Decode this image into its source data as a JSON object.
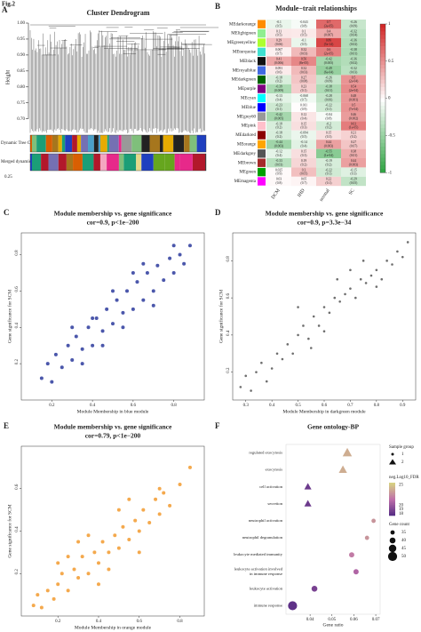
{
  "figure_label": "Fig.2",
  "chart_data": [
    {
      "panel": "A",
      "type": "dendrogram",
      "title": "Cluster Dendrogram",
      "ylabel": "Height",
      "ylim": [
        0.66,
        1.0
      ],
      "yticks": [
        {
          "value": 0.7,
          "label": "0.70"
        },
        {
          "value": 0.75,
          "label": "0.75"
        },
        {
          "value": 0.8,
          "label": "0.80"
        },
        {
          "value": 0.85,
          "label": "0.85"
        },
        {
          "value": 0.9,
          "label": "0.90"
        },
        {
          "value": 0.95,
          "label": "0.95"
        },
        {
          "value": 1,
          "label": "1.00"
        }
      ],
      "track_labels": [
        "Dynamic Tree Cut",
        "Merged dynamic"
      ],
      "note": "0.25"
    },
    {
      "panel": "B",
      "type": "heatmap",
      "title": "Module−trait relationships",
      "rows": [
        "MEdarkorange",
        "MElightgreen",
        "MEgreenyellow",
        "MEturquoise",
        "MEblack",
        "MEroyalblue",
        "MEdarkgreen",
        "MEpurple",
        "MEcyan",
        "MEblue",
        "MEgrey60",
        "MEpink",
        "MEdarkred",
        "MEorange",
        "MEdarkgrey",
        "MEbrown",
        "MEgreen",
        "MEmagenta"
      ],
      "columns": [
        "DCM",
        "IHD",
        "normal",
        "SC"
      ],
      "values": [
        [
          -0.1,
          -0.043,
          0.7,
          -0.26
        ],
        [
          0.11,
          0.1,
          0.4,
          -0.32
        ],
        [
          0.29,
          -0.1,
          0.86,
          -0.36
        ],
        [
          0.067,
          0.32,
          0.6,
          -0.38
        ],
        [
          0.41,
          0.56,
          -0.42,
          -0.36
        ],
        [
          0.091,
          0.32,
          -0.49,
          -0.32
        ],
        [
          -0.18,
          0.27,
          -0.26,
          0.5
        ],
        [
          -0.39,
          0.23,
          -0.38,
          0.54
        ],
        [
          -0.13,
          -0.068,
          -0.28,
          0.48
        ],
        [
          -0.23,
          0.011,
          -0.22,
          0.5
        ],
        [
          -0.42,
          0.12,
          -0.04,
          0.46
        ],
        [
          -0.18,
          0.15,
          -0.2,
          0.61
        ],
        [
          -0.18,
          -0.094,
          0.15,
          0.21
        ],
        [
          -0.44,
          -0.14,
          0.44,
          0.27
        ],
        [
          -0.12,
          0.15,
          -0.55,
          0.38
        ],
        [
          -0.33,
          0.19,
          -0.19,
          0.44
        ],
        [
          0.025,
          0.3,
          -0.22,
          -0.15
        ],
        [
          0.03,
          0.05,
          0.22,
          -0.29
        ]
      ],
      "p_labels": [
        [
          "(0.5)",
          "(0.8)",
          "(3e-05)",
          "(0.09)"
        ],
        [
          "(0.5)",
          "(0.5)",
          "(0.007)",
          "(0.04)"
        ],
        [
          "(0.06)",
          "(0.5)",
          "(5e-14)",
          "(0.02)"
        ],
        [
          "(0.7)",
          "(0.03)",
          "(2e-05)",
          "(0.01)"
        ],
        [
          "(0.006)",
          "(8e-05)",
          "(0.005)",
          "(0.02)"
        ],
        [
          "(0.6)",
          "(0.03)",
          "(6e-04)",
          "(0.03)"
        ],
        [
          "(0.2)",
          "(0.08)",
          "(0.09)",
          "(2e-04)"
        ],
        [
          "(0.009)",
          "(0.1)",
          "(0.01)",
          "(2e-04)"
        ],
        [
          "(0.4)",
          "(0.7)",
          "(0.06)",
          "(0.001)"
        ],
        [
          "(0.1)",
          "(0.9)",
          "(0.1)",
          "(7e-04)"
        ],
        [
          "(0.005)",
          "(0.4)",
          "(0.8)",
          "(0.002)"
        ],
        [
          "(0.2)",
          "(0.3)",
          "(0.2)",
          "(1e-05)"
        ],
        [
          "(0.2)",
          "(0.5)",
          "(0.3)",
          "(0.2)"
        ],
        [
          "(0.003)",
          "(0.4)",
          "(0.003)",
          "(0.07)"
        ],
        [
          "(0.4)",
          "(0.3)",
          "(1e-04)",
          "(0.01)"
        ],
        [
          "(0.03)",
          "(0.2)",
          "(0.2)",
          "(0.003)"
        ],
        [
          "(0.9)",
          "(0.05)",
          "(0.1)",
          "(0.3)"
        ],
        [
          "(0.8)",
          "(0.7)",
          "(0.1)",
          "(0.05)"
        ]
      ],
      "zlim": [
        -1,
        1
      ],
      "zticks": [
        1,
        0.5,
        0,
        -0.5,
        -1
      ]
    },
    {
      "panel": "C",
      "type": "scatter",
      "title": "Module membership vs. gene significance",
      "subtitle": "cor=0.9, p<1e−200",
      "xlabel": "Module Membership in blue module",
      "ylabel": "Gene significance for SCM",
      "color": "#2b3a9c",
      "xlim": [
        0.05,
        0.95
      ],
      "ylim": [
        0,
        0.92
      ],
      "xticks": [
        0.2,
        0.4,
        0.6,
        0.8
      ],
      "yticks": [
        0.2,
        0.4,
        0.6,
        0.8
      ],
      "x": [
        0.15,
        0.18,
        0.2,
        0.22,
        0.25,
        0.28,
        0.3,
        0.32,
        0.35,
        0.38,
        0.4,
        0.42,
        0.45,
        0.47,
        0.5,
        0.52,
        0.55,
        0.57,
        0.6,
        0.62,
        0.65,
        0.67,
        0.7,
        0.72,
        0.75,
        0.78,
        0.8,
        0.83,
        0.85,
        0.88,
        0.3,
        0.45,
        0.6,
        0.7,
        0.5,
        0.4,
        0.55,
        0.65,
        0.35,
        0.8
      ],
      "y": [
        0.12,
        0.2,
        0.1,
        0.25,
        0.18,
        0.3,
        0.22,
        0.35,
        0.28,
        0.4,
        0.3,
        0.45,
        0.38,
        0.5,
        0.42,
        0.55,
        0.48,
        0.6,
        0.5,
        0.65,
        0.55,
        0.7,
        0.6,
        0.74,
        0.66,
        0.78,
        0.7,
        0.8,
        0.75,
        0.85,
        0.4,
        0.3,
        0.7,
        0.52,
        0.6,
        0.45,
        0.4,
        0.75,
        0.2,
        0.85
      ]
    },
    {
      "panel": "D",
      "type": "scatter",
      "title": "Module membership vs. gene significance",
      "subtitle": "cor=0.9, p=3.3e−34",
      "xlabel": "Module Membership in darkgreen module",
      "ylabel": "Gene significance for SCM",
      "color": "#555555",
      "xlim": [
        0.25,
        0.95
      ],
      "ylim": [
        0.05,
        0.95
      ],
      "xticks": [
        0.3,
        0.4,
        0.5,
        0.6,
        0.7,
        0.8,
        0.9
      ],
      "yticks": [
        0.2,
        0.4,
        0.6,
        0.8
      ],
      "x": [
        0.28,
        0.3,
        0.32,
        0.34,
        0.36,
        0.38,
        0.4,
        0.42,
        0.44,
        0.46,
        0.48,
        0.5,
        0.52,
        0.54,
        0.56,
        0.58,
        0.6,
        0.62,
        0.64,
        0.66,
        0.68,
        0.7,
        0.72,
        0.74,
        0.76,
        0.78,
        0.8,
        0.82,
        0.84,
        0.86,
        0.88,
        0.9,
        0.92,
        0.5,
        0.6,
        0.7,
        0.8,
        0.65,
        0.75,
        0.55
      ],
      "y": [
        0.12,
        0.18,
        0.1,
        0.2,
        0.25,
        0.15,
        0.22,
        0.3,
        0.27,
        0.35,
        0.3,
        0.4,
        0.45,
        0.38,
        0.5,
        0.45,
        0.55,
        0.52,
        0.6,
        0.58,
        0.62,
        0.65,
        0.6,
        0.7,
        0.68,
        0.72,
        0.75,
        0.7,
        0.8,
        0.78,
        0.85,
        0.82,
        0.9,
        0.55,
        0.42,
        0.75,
        0.66,
        0.7,
        0.8,
        0.33
      ]
    },
    {
      "panel": "E",
      "type": "scatter",
      "title": "Module membership vs. gene significance",
      "subtitle": "cor=0.79, p<1e−200",
      "xlabel": "Module Membership in orange module",
      "ylabel": "Gene significance for SCM",
      "color": "#f29a2e",
      "xlim": [
        0.02,
        0.92
      ],
      "ylim": [
        0,
        0.8
      ],
      "xticks": [
        0.2,
        0.4,
        0.6,
        0.8
      ],
      "yticks": [
        0.2,
        0.4,
        0.6
      ],
      "x": [
        0.08,
        0.1,
        0.12,
        0.15,
        0.18,
        0.2,
        0.22,
        0.25,
        0.28,
        0.3,
        0.32,
        0.35,
        0.38,
        0.4,
        0.42,
        0.45,
        0.48,
        0.5,
        0.52,
        0.55,
        0.58,
        0.6,
        0.62,
        0.65,
        0.68,
        0.7,
        0.72,
        0.75,
        0.8,
        0.85,
        0.3,
        0.4,
        0.5,
        0.6,
        0.25,
        0.35,
        0.45,
        0.55,
        0.7,
        0.2
      ],
      "y": [
        0.05,
        0.1,
        0.04,
        0.12,
        0.08,
        0.15,
        0.2,
        0.12,
        0.22,
        0.18,
        0.28,
        0.2,
        0.3,
        0.25,
        0.35,
        0.3,
        0.38,
        0.32,
        0.42,
        0.36,
        0.45,
        0.4,
        0.5,
        0.44,
        0.55,
        0.48,
        0.58,
        0.52,
        0.62,
        0.7,
        0.35,
        0.15,
        0.5,
        0.3,
        0.28,
        0.38,
        0.22,
        0.55,
        0.6,
        0.25
      ]
    },
    {
      "panel": "F",
      "type": "dotplot",
      "title": "Gene ontology-BP",
      "xlabel": "Gene ratio",
      "categories": [
        "regulated exocytosis",
        "exocytosis",
        "cell activation",
        "secretion",
        "neutrophil activation",
        "neutrophil degranulation",
        "leukocyte mediated immunity",
        "leukocyte activation involved in immune response",
        "leukocyte activation",
        "immune response"
      ],
      "x": [
        0.057,
        0.055,
        0.039,
        0.039,
        0.069,
        0.066,
        0.059,
        0.061,
        0.042,
        0.032
      ],
      "groups": [
        2,
        2,
        2,
        2,
        1,
        1,
        1,
        1,
        1,
        1
      ],
      "fdr": [
        24,
        24,
        18.5,
        18.5,
        23,
        23,
        22,
        21,
        19,
        18
      ],
      "counts": [
        48,
        45,
        42,
        42,
        35,
        35,
        38,
        38,
        40,
        50
      ],
      "xlim": [
        0.029,
        0.072
      ],
      "xticks": [
        0.04,
        0.05,
        0.06,
        0.07
      ],
      "group_title": "Sample group",
      "group_levels": [
        1,
        2
      ],
      "fdr_title": "neg.Log10_FDR",
      "fdr_lim": [
        17.5,
        25.5
      ],
      "fdr_ticks": [
        25,
        20,
        19,
        18
      ],
      "count_title": "Gene count",
      "count_levels": [
        35,
        40,
        45,
        50
      ]
    }
  ]
}
